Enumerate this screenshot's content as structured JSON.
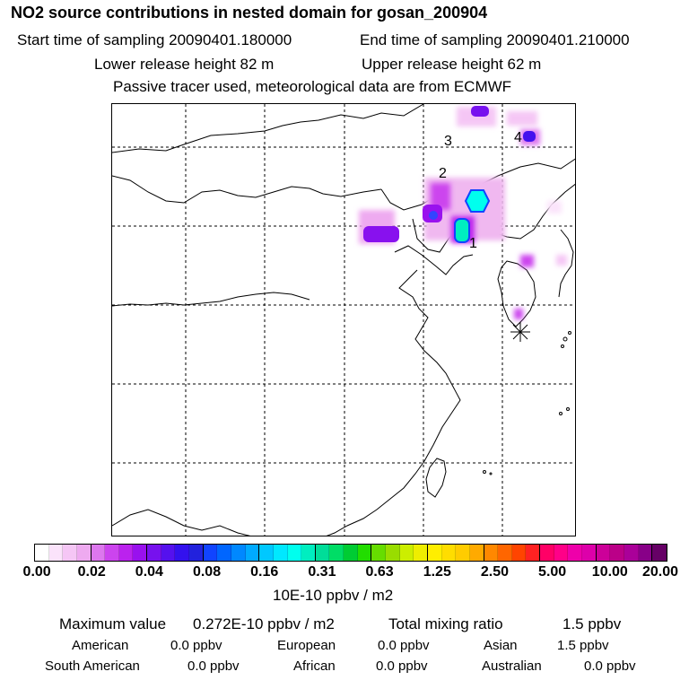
{
  "header": {
    "title": "NO2 source contributions in nested domain for gosan_200904",
    "start_time": "Start time of sampling 20090401.180000",
    "end_time": "End time of sampling 20090401.210000",
    "lower_release": "Lower release height   82 m",
    "upper_release": "Upper release height   62 m",
    "note": "Passive tracer used, meteorological data are from ECMWF"
  },
  "map": {
    "source_labels": [
      "1",
      "2",
      "3",
      "4"
    ],
    "receptor_marker": "asterisk"
  },
  "colorbar": {
    "unit": "10E-10 ppbv / m2",
    "tick_labels": [
      "0.00",
      "0.02",
      "0.04",
      "0.08",
      "0.16",
      "0.31",
      "0.63",
      "1.25",
      "2.50",
      "5.00",
      "10.00",
      "20.00"
    ],
    "colors": [
      "#ffffff",
      "#fbe3fb",
      "#f5c6f5",
      "#eeaaf0",
      "#dd77ee",
      "#cc44ee",
      "#bb22ee",
      "#9911ee",
      "#7711ee",
      "#5511ee",
      "#3311ee",
      "#2222dd",
      "#1144ff",
      "#0066ff",
      "#0088ff",
      "#00aaff",
      "#00c8ff",
      "#00e8ff",
      "#00ffee",
      "#00eec0",
      "#00dd99",
      "#00dd66",
      "#00cc33",
      "#22dd00",
      "#66dd00",
      "#99dd00",
      "#ccee00",
      "#eeee00",
      "#ffee00",
      "#ffdd00",
      "#ffcc00",
      "#ffaa00",
      "#ff8800",
      "#ff6600",
      "#ff4400",
      "#ff2222",
      "#ff0066",
      "#ff0088",
      "#ee00aa",
      "#dd00aa",
      "#cc0099",
      "#bb0088",
      "#aa0099",
      "#880088",
      "#660066"
    ]
  },
  "summary": {
    "max_label": "Maximum value",
    "max_value": "0.272E-10 ppbv / m2",
    "total_label": "Total mixing ratio",
    "total_value": "1.5 ppbv",
    "regions": [
      {
        "name": "American",
        "value": "0.0 ppbv"
      },
      {
        "name": "European",
        "value": "0.0 ppbv"
      },
      {
        "name": "Asian",
        "value": "1.5 ppbv"
      },
      {
        "name": "South American",
        "value": "0.0 ppbv"
      },
      {
        "name": "African",
        "value": "0.0 ppbv"
      },
      {
        "name": "Australian",
        "value": "0.0 ppbv"
      }
    ]
  }
}
